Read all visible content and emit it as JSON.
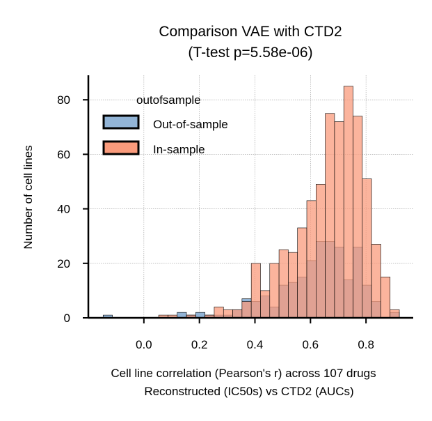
{
  "chart_data": {
    "type": "bar",
    "subtype": "histogram-overlay",
    "title": [
      "Comparison VAE with CTD2",
      "(T-test p=5.58e-06)"
    ],
    "xlabel": [
      "Cell line correlation (Pearson's r) across 107 drugs",
      "Reconstructed (IC50s) vs CTD2 (AUCs)"
    ],
    "ylabel": "Number of cell lines",
    "xlim": [
      -0.2,
      0.97
    ],
    "ylim": [
      0,
      89
    ],
    "x_ticks": [
      0.0,
      0.2,
      0.4,
      0.6,
      0.8
    ],
    "y_ticks": [
      0,
      20,
      40,
      60,
      80
    ],
    "x_tick_labels": [
      "0.0",
      "0.2",
      "0.4",
      "0.6",
      "0.8"
    ],
    "y_tick_labels": [
      "0",
      "20",
      "40",
      "60",
      "80"
    ],
    "bin_width": 0.0333,
    "grid": true,
    "legend": {
      "title": "outofsample",
      "position": "upper-left",
      "entries": [
        "Out-of-sample",
        "In-sample"
      ]
    },
    "series": [
      {
        "name": "Out-of-sample",
        "color": "#92B4D6",
        "bins": [
          {
            "x0": -0.1467,
            "x1": -0.1133,
            "count": 1
          },
          {
            "x0": 0.12,
            "x1": 0.1533,
            "count": 2
          },
          {
            "x0": 0.1533,
            "x1": 0.1867,
            "count": 1
          },
          {
            "x0": 0.1867,
            "x1": 0.22,
            "count": 2
          },
          {
            "x0": 0.22,
            "x1": 0.2533,
            "count": 1
          },
          {
            "x0": 0.2533,
            "x1": 0.2867,
            "count": 1
          },
          {
            "x0": 0.2867,
            "x1": 0.32,
            "count": 1
          },
          {
            "x0": 0.32,
            "x1": 0.3533,
            "count": 3
          },
          {
            "x0": 0.3533,
            "x1": 0.3867,
            "count": 7
          },
          {
            "x0": 0.3867,
            "x1": 0.42,
            "count": 6
          },
          {
            "x0": 0.42,
            "x1": 0.4533,
            "count": 8
          },
          {
            "x0": 0.4533,
            "x1": 0.4867,
            "count": 4
          },
          {
            "x0": 0.4867,
            "x1": 0.52,
            "count": 12
          },
          {
            "x0": 0.52,
            "x1": 0.5533,
            "count": 13
          },
          {
            "x0": 0.5533,
            "x1": 0.5867,
            "count": 15
          },
          {
            "x0": 0.5867,
            "x1": 0.62,
            "count": 21
          },
          {
            "x0": 0.62,
            "x1": 0.6533,
            "count": 28
          },
          {
            "x0": 0.6533,
            "x1": 0.6867,
            "count": 28
          },
          {
            "x0": 0.6867,
            "x1": 0.72,
            "count": 26
          },
          {
            "x0": 0.72,
            "x1": 0.7533,
            "count": 14
          },
          {
            "x0": 0.7533,
            "x1": 0.7867,
            "count": 26
          },
          {
            "x0": 0.7867,
            "x1": 0.82,
            "count": 12
          },
          {
            "x0": 0.82,
            "x1": 0.8533,
            "count": 6
          },
          {
            "x0": 0.8867,
            "x1": 0.92,
            "count": 2
          }
        ]
      },
      {
        "name": "In-sample",
        "color": "#FA9B7C",
        "bins": [
          {
            "x0": 0.0533,
            "x1": 0.0867,
            "count": 1
          },
          {
            "x0": 0.0867,
            "x1": 0.12,
            "count": 1
          },
          {
            "x0": 0.1533,
            "x1": 0.1867,
            "count": 1
          },
          {
            "x0": 0.22,
            "x1": 0.2533,
            "count": 1
          },
          {
            "x0": 0.2533,
            "x1": 0.2867,
            "count": 4
          },
          {
            "x0": 0.2867,
            "x1": 0.32,
            "count": 3
          },
          {
            "x0": 0.32,
            "x1": 0.3533,
            "count": 3
          },
          {
            "x0": 0.3533,
            "x1": 0.3867,
            "count": 6
          },
          {
            "x0": 0.3867,
            "x1": 0.42,
            "count": 20
          },
          {
            "x0": 0.42,
            "x1": 0.4533,
            "count": 10
          },
          {
            "x0": 0.4533,
            "x1": 0.4867,
            "count": 20
          },
          {
            "x0": 0.4867,
            "x1": 0.52,
            "count": 25
          },
          {
            "x0": 0.52,
            "x1": 0.5533,
            "count": 24
          },
          {
            "x0": 0.5533,
            "x1": 0.5867,
            "count": 33
          },
          {
            "x0": 0.5867,
            "x1": 0.62,
            "count": 43
          },
          {
            "x0": 0.62,
            "x1": 0.6533,
            "count": 49
          },
          {
            "x0": 0.6533,
            "x1": 0.6867,
            "count": 75
          },
          {
            "x0": 0.6867,
            "x1": 0.72,
            "count": 72
          },
          {
            "x0": 0.72,
            "x1": 0.7533,
            "count": 85
          },
          {
            "x0": 0.7533,
            "x1": 0.7867,
            "count": 74
          },
          {
            "x0": 0.7867,
            "x1": 0.82,
            "count": 51
          },
          {
            "x0": 0.82,
            "x1": 0.8533,
            "count": 27
          },
          {
            "x0": 0.8533,
            "x1": 0.8867,
            "count": 15
          },
          {
            "x0": 0.8867,
            "x1": 0.92,
            "count": 3
          }
        ]
      }
    ]
  }
}
